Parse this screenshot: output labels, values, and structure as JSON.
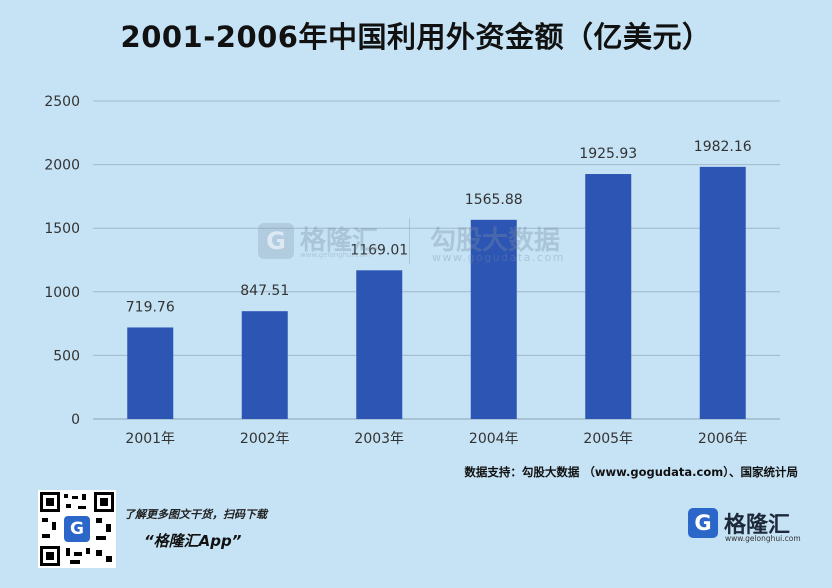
{
  "title": "2001-2006年中国利用外资金额（亿美元）",
  "chart_data": {
    "type": "bar",
    "title": "2001-2006年中国利用外资金额（亿美元）",
    "categories": [
      "2001年",
      "2002年",
      "2003年",
      "2004年",
      "2005年",
      "2006年"
    ],
    "values": [
      719.76,
      847.51,
      1169.01,
      1565.88,
      1925.93,
      1982.16
    ],
    "value_labels": [
      "719.76",
      "847.51",
      "1169.01",
      "1565.88",
      "1925.93",
      "1982.16"
    ],
    "ylim": [
      0,
      2500
    ],
    "yticks": [
      0,
      500,
      1000,
      1500,
      2000,
      2500
    ],
    "grid": true,
    "bar_color": "#2d55b4",
    "grid_color": "#9fb8c9"
  },
  "watermark": {
    "icon_letter": "G",
    "name1": "格隆汇",
    "url1": "www.gelonghui.com",
    "name2": "勾股大数据",
    "url2": "www.gogudata.com"
  },
  "source": "数据支持：勾股大数据 （www.gogudata.com）、国家统计局",
  "footer": {
    "promo_line1": "了解更多图文干货，扫码下载",
    "promo_line2": "“格隆汇App”",
    "brand_icon_letter": "G",
    "brand_name": "格隆汇",
    "brand_url": "www.gelonghui.com"
  }
}
